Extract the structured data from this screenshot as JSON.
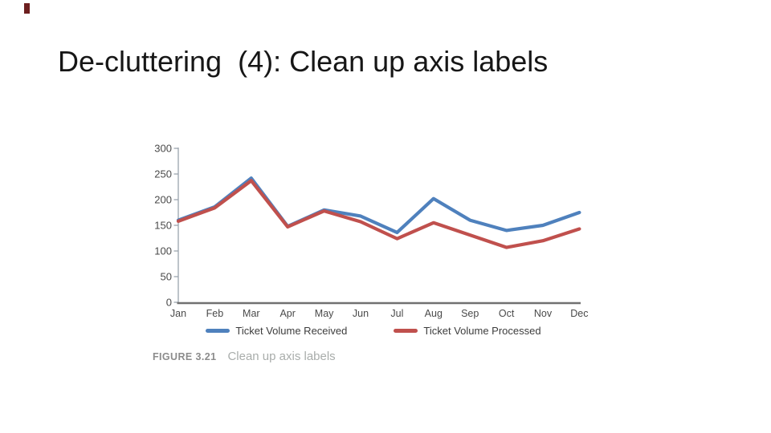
{
  "slide": {
    "title": "De-cluttering  (4): Clean up axis labels",
    "accent_color": "#6d1f1f"
  },
  "figure": {
    "caption_label": "FIGURE 3.21",
    "caption_text": "Clean up axis labels"
  },
  "chart_data": {
    "type": "line",
    "title": "",
    "xlabel": "",
    "ylabel": "",
    "categories": [
      "Jan",
      "Feb",
      "Mar",
      "Apr",
      "May",
      "Jun",
      "Jul",
      "Aug",
      "Sep",
      "Oct",
      "Nov",
      "Dec"
    ],
    "series": [
      {
        "name": "Ticket Volume Received",
        "color": "#4f81bd",
        "values": [
          160,
          186,
          242,
          148,
          180,
          168,
          136,
          202,
          160,
          140,
          150,
          175
        ]
      },
      {
        "name": "Ticket Volume Processed",
        "color": "#c0504d",
        "values": [
          158,
          184,
          237,
          147,
          178,
          157,
          124,
          155,
          131,
          107,
          120,
          143
        ]
      }
    ],
    "ylim": [
      0,
      300
    ],
    "yticks": [
      0,
      50,
      100,
      150,
      200,
      250,
      300
    ],
    "grid": false,
    "legend_position": "bottom",
    "axis_color": "#9aa4ae",
    "baseline_color": "#707070",
    "tick_text_color": "#4a4a4a"
  }
}
